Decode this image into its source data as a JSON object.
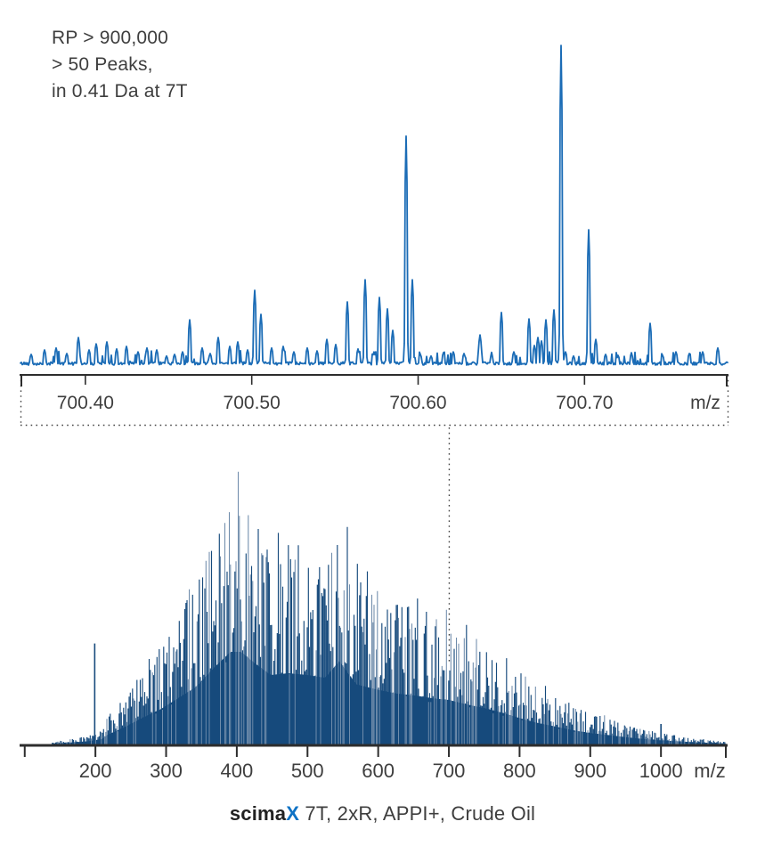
{
  "figure": {
    "annotation_lines": [
      "RP > 900,000",
      "> 50 Peaks,",
      "in 0.41 Da at 7T"
    ],
    "caption": {
      "brand": "scima",
      "brand_accent": "X",
      "details": " 7T, 2xR, APPI+, Crude Oil"
    }
  },
  "colors": {
    "zoom_trace": "#1b6cb6",
    "full_trace": "#164a7c",
    "full_trace_light": "#6f8cab",
    "axis": "#2d2d2d",
    "text": "#3e3e3e",
    "caption_strong": "#222222",
    "brand_accent": "#0e72c5",
    "dotted": "#454545",
    "background": "#ffffff"
  },
  "chart_data": [
    {
      "id": "zoom_spectrum",
      "type": "line",
      "title": "Zoomed-in mass spectrum window",
      "annotation": "RP > 900,000  > 50 Peaks, in 0.41 Da at 7T",
      "xlabel": "m/z",
      "ylabel": "",
      "grid": false,
      "xlim": [
        700.361,
        700.786
      ],
      "x_unit": "m/z",
      "x_ticks": [
        {
          "value": 700.4,
          "label": "700.40"
        },
        {
          "value": 700.5,
          "label": "700.50"
        },
        {
          "value": 700.6,
          "label": "700.60"
        },
        {
          "value": 700.7,
          "label": "700.70"
        }
      ],
      "peaks_format": [
        "mz",
        "relative_intensity"
      ],
      "peaks": [
        [
          700.3674,
          0.036
        ],
        [
          700.3754,
          0.05
        ],
        [
          700.3824,
          0.056
        ],
        [
          700.3888,
          0.039
        ],
        [
          700.3957,
          0.089
        ],
        [
          700.4021,
          0.05
        ],
        [
          700.4064,
          0.069
        ],
        [
          700.4128,
          0.075
        ],
        [
          700.4187,
          0.053
        ],
        [
          700.4246,
          0.061
        ],
        [
          700.4316,
          0.044
        ],
        [
          700.4369,
          0.056
        ],
        [
          700.4428,
          0.05
        ],
        [
          700.4487,
          0.031
        ],
        [
          700.4535,
          0.036
        ],
        [
          700.4583,
          0.044
        ],
        [
          700.4626,
          0.144
        ],
        [
          700.4701,
          0.056
        ],
        [
          700.4749,
          0.039
        ],
        [
          700.4797,
          0.089
        ],
        [
          700.4866,
          0.061
        ],
        [
          700.4914,
          0.075
        ],
        [
          700.4973,
          0.05
        ],
        [
          700.5016,
          0.236
        ],
        [
          700.5053,
          0.161
        ],
        [
          700.5118,
          0.056
        ],
        [
          700.5187,
          0.061
        ],
        [
          700.5251,
          0.044
        ],
        [
          700.5332,
          0.056
        ],
        [
          700.539,
          0.047
        ],
        [
          700.5449,
          0.083
        ],
        [
          700.5503,
          0.067
        ],
        [
          700.5572,
          0.2
        ],
        [
          700.5636,
          0.053
        ],
        [
          700.5679,
          0.269
        ],
        [
          700.5733,
          0.044
        ],
        [
          700.5765,
          0.214
        ],
        [
          700.5813,
          0.178
        ],
        [
          700.585,
          0.111
        ],
        [
          700.593,
          0.717
        ],
        [
          700.5963,
          0.269
        ],
        [
          700.6016,
          0.036
        ],
        [
          700.608,
          0.031
        ],
        [
          700.615,
          0.042
        ],
        [
          700.6214,
          0.044
        ],
        [
          700.6278,
          0.039
        ],
        [
          700.6374,
          0.097
        ],
        [
          700.6439,
          0.036
        ],
        [
          700.6503,
          0.167
        ],
        [
          700.6578,
          0.044
        ],
        [
          700.6668,
          0.147
        ],
        [
          700.6701,
          0.064
        ],
        [
          700.6722,
          0.089
        ],
        [
          700.6743,
          0.078
        ],
        [
          700.677,
          0.144
        ],
        [
          700.6818,
          0.175
        ],
        [
          700.6861,
          1.0
        ],
        [
          700.6888,
          0.044
        ],
        [
          700.6936,
          0.031
        ],
        [
          700.7027,
          0.425
        ],
        [
          700.707,
          0.083
        ],
        [
          700.7128,
          0.036
        ],
        [
          700.7203,
          0.033
        ],
        [
          700.7283,
          0.039
        ],
        [
          700.7396,
          0.133
        ],
        [
          700.7471,
          0.033
        ],
        [
          700.7551,
          0.044
        ],
        [
          700.7631,
          0.039
        ],
        [
          700.7711,
          0.044
        ],
        [
          700.7802,
          0.056
        ]
      ],
      "noise_relative": 0.012
    },
    {
      "id": "full_spectrum",
      "type": "line",
      "title": "scimaX 7T, 2xR, APPI+, Crude Oil",
      "xlabel": "m/z",
      "ylabel": "",
      "grid": false,
      "xlim": [
        94,
        1093
      ],
      "x_unit": "m/z",
      "x_ticks": [
        {
          "value": 100,
          "label": ""
        },
        {
          "value": 200,
          "label": "200"
        },
        {
          "value": 300,
          "label": "300"
        },
        {
          "value": 400,
          "label": "400"
        },
        {
          "value": 500,
          "label": "500"
        },
        {
          "value": 600,
          "label": "600"
        },
        {
          "value": 700,
          "label": "700"
        },
        {
          "value": 800,
          "label": "800"
        },
        {
          "value": 900,
          "label": "900"
        },
        {
          "value": 1000,
          "label": "1000"
        }
      ],
      "envelope_format": [
        "mz",
        "relative_intensity"
      ],
      "envelope": [
        [
          138,
          0.008
        ],
        [
          165,
          0.02
        ],
        [
          190,
          0.035
        ],
        [
          210,
          0.06
        ],
        [
          216,
          0.1
        ],
        [
          242,
          0.19
        ],
        [
          267,
          0.29
        ],
        [
          292,
          0.38
        ],
        [
          317,
          0.5
        ],
        [
          342,
          0.62
        ],
        [
          368,
          0.83
        ],
        [
          391,
          1.0
        ],
        [
          406,
          1.0
        ],
        [
          425,
          0.88
        ],
        [
          448,
          0.75
        ],
        [
          473,
          0.77
        ],
        [
          500,
          0.75
        ],
        [
          525,
          0.72
        ],
        [
          545,
          0.9
        ],
        [
          569,
          0.65
        ],
        [
          600,
          0.59
        ],
        [
          626,
          0.55
        ],
        [
          651,
          0.53
        ],
        [
          676,
          0.5
        ],
        [
          701,
          0.48
        ],
        [
          727,
          0.43
        ],
        [
          752,
          0.39
        ],
        [
          777,
          0.34
        ],
        [
          802,
          0.28
        ],
        [
          827,
          0.23
        ],
        [
          853,
          0.19
        ],
        [
          878,
          0.15
        ],
        [
          903,
          0.12
        ],
        [
          928,
          0.1
        ],
        [
          953,
          0.076
        ],
        [
          979,
          0.057
        ],
        [
          1000,
          0.044
        ],
        [
          1035,
          0.029
        ],
        [
          1060,
          0.019
        ],
        [
          1093,
          0.01
        ]
      ],
      "notable_peaks": [
        [
          199,
          0.36
        ],
        [
          1000,
          0.073
        ]
      ],
      "peak_spacing_da": 14,
      "zoom_callout_mz": 700.5
    }
  ]
}
